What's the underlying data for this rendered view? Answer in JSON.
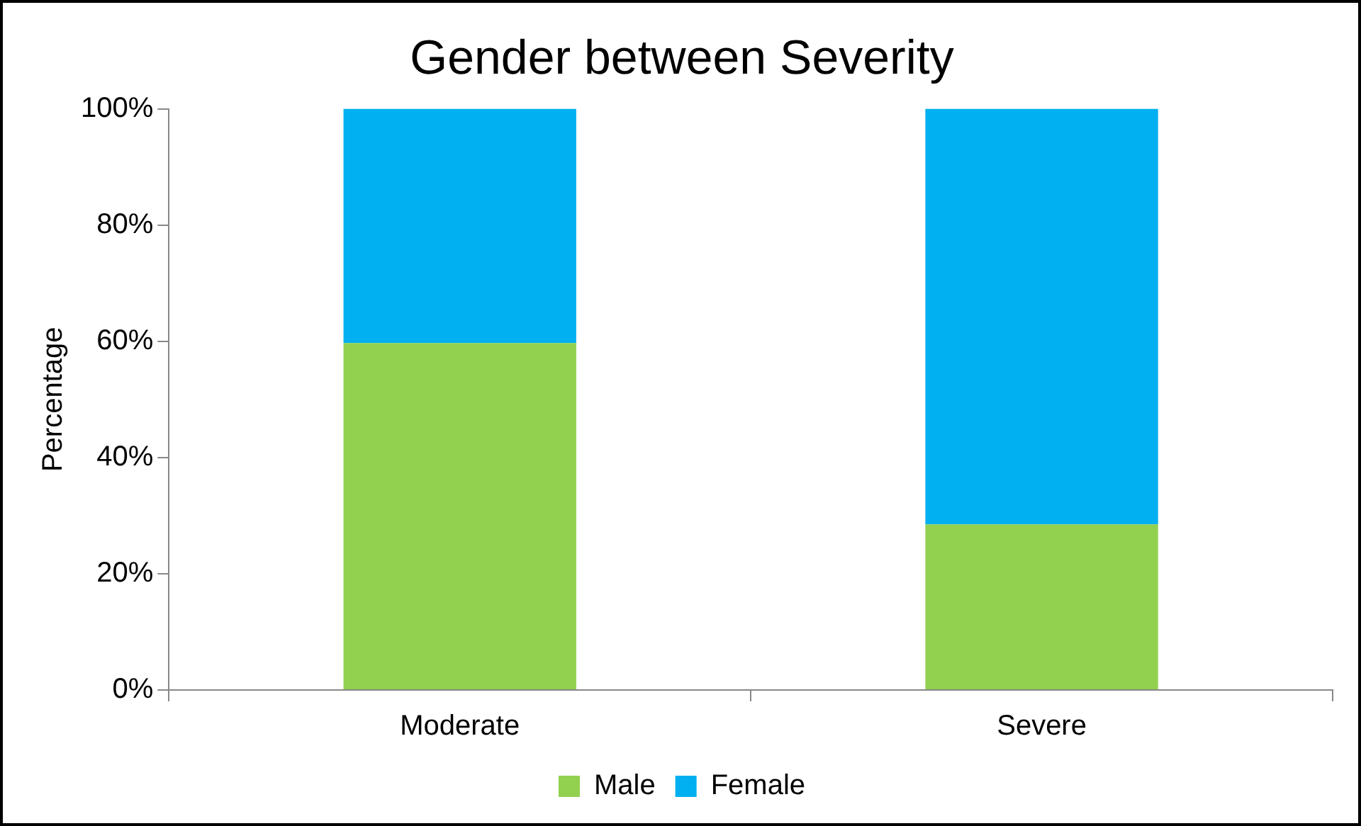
{
  "chart_data": {
    "type": "bar",
    "title": "Gender between Severity",
    "ylabel": "Percentage",
    "categories": [
      "Moderate",
      "Severe"
    ],
    "series": [
      {
        "name": "Male",
        "color": "#92d050",
        "values": [
          59.7,
          28.5
        ]
      },
      {
        "name": "Female",
        "color": "#00b0f0",
        "values": [
          40.3,
          71.5
        ]
      }
    ],
    "stacked": true,
    "ylim": [
      0,
      100
    ],
    "yticks": [
      {
        "value": 0,
        "label": "0%"
      },
      {
        "value": 20,
        "label": "20%"
      },
      {
        "value": 40,
        "label": "40%"
      },
      {
        "value": 60,
        "label": "60%"
      },
      {
        "value": 80,
        "label": "80%"
      },
      {
        "value": 100,
        "label": "100%"
      }
    ],
    "grid": false,
    "legend": "bottom"
  }
}
